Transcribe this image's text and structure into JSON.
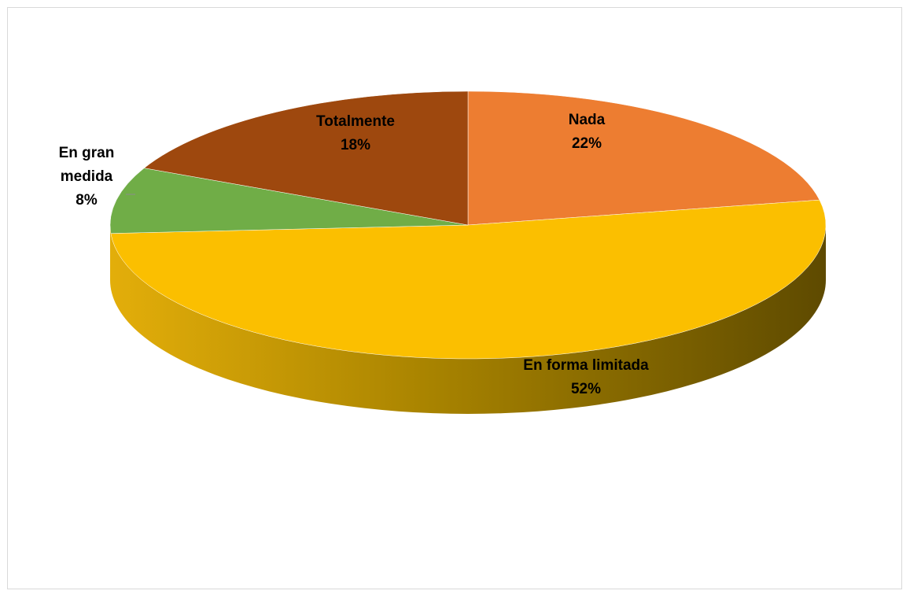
{
  "chart_data": {
    "type": "pie",
    "style": "3d",
    "title": "",
    "slices": [
      {
        "label": "Nada",
        "label_lines": [
          "Nada"
        ],
        "value": 22,
        "value_label": "22%",
        "color": "#ED7D31"
      },
      {
        "label": "En forma limitada",
        "label_lines": [
          "En forma limitada"
        ],
        "value": 52,
        "value_label": "52%",
        "color": "#FBBF00"
      },
      {
        "label": "En gran medida",
        "label_lines": [
          "En gran",
          "medida"
        ],
        "value": 8,
        "value_label": "8%",
        "color": "#70AD47"
      },
      {
        "label": "Totalmente",
        "label_lines": [
          "Totalmente"
        ],
        "value": 18,
        "value_label": "18%",
        "color": "#9E480E"
      }
    ],
    "legend": "none"
  }
}
